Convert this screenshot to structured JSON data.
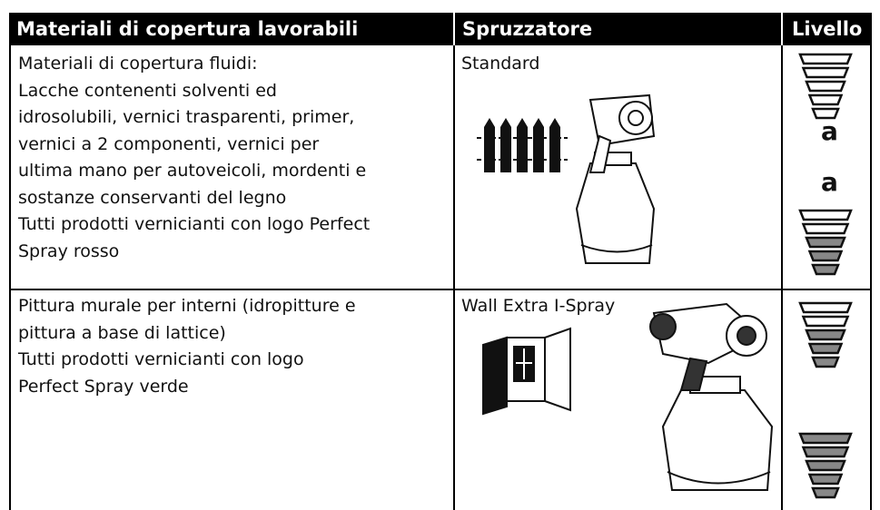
{
  "table": {
    "header": [
      "Materiali di copertura lavorabili",
      "Spruzzatore",
      "Livello"
    ],
    "rows": [
      {
        "materials": [
          "Materiali di copertura fluidi:",
          "Lacche contenenti solventi ed",
          "idrosolubili, vernici trasparenti, primer,",
          "vernici a 2 componenti, vernici per",
          "ultima mano per autoveicoli, mordenti e",
          "sostanze conservanti del legno",
          "Tutti prodotti vernicianti con logo Perfect",
          "Spray rosso"
        ],
        "sprayer": "Standard",
        "level_labels": [
          "a",
          "a"
        ]
      },
      {
        "materials": [
          "Pittura murale per interni (idropitture e",
          "pittura a base di lattice)",
          "Tutti prodotti vernicianti con logo",
          "Perfect Spray verde"
        ],
        "sprayer": "Wall Extra I-Spray",
        "level_labels": []
      }
    ]
  }
}
